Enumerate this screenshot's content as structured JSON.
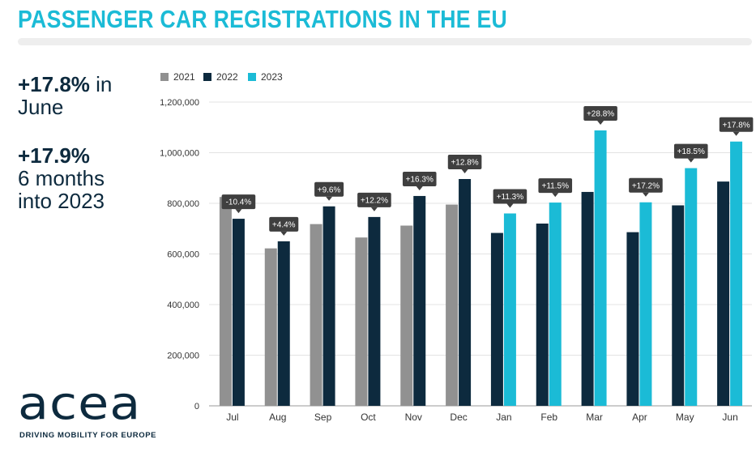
{
  "title": "PASSENGER CAR REGISTRATIONS IN THE EU",
  "stats": [
    {
      "value": "+17.8%",
      "text": " in",
      "text2": "June"
    },
    {
      "value": "+17.9%",
      "text": "",
      "text2": "6 months",
      "text3": "into 2023"
    }
  ],
  "logo": {
    "word": "acea",
    "tagline": "DRIVING MOBILITY FOR EUROPE"
  },
  "colors": {
    "2021": "#919191",
    "2022": "#0d2a3e",
    "2023": "#1bbbd6",
    "label_bg": "#3f3f3f",
    "title": "#1bbbd6"
  },
  "chart_data": {
    "type": "bar",
    "categories": [
      "Jul",
      "Aug",
      "Sep",
      "Oct",
      "Nov",
      "Dec",
      "Jan",
      "Feb",
      "Mar",
      "Apr",
      "May",
      "Jun"
    ],
    "series": [
      {
        "name": "2021",
        "values": [
          825000,
          622000,
          718000,
          665000,
          712000,
          795000,
          null,
          null,
          null,
          null,
          null,
          null
        ]
      },
      {
        "name": "2022",
        "values": [
          739000,
          650000,
          788000,
          746000,
          829000,
          896000,
          683000,
          720000,
          845000,
          686000,
          792000,
          886000
        ]
      },
      {
        "name": "2023",
        "values": [
          null,
          null,
          null,
          null,
          null,
          null,
          760000,
          803000,
          1088000,
          804000,
          939000,
          1044000
        ]
      }
    ],
    "change_labels": [
      "-10.4%",
      "+4.4%",
      "+9.6%",
      "+12.2%",
      "+16.3%",
      "+12.8%",
      "+11.3%",
      "+11.5%",
      "+28.8%",
      "+17.2%",
      "+18.5%",
      "+17.8%"
    ],
    "y_ticks": [
      "0",
      "200,000",
      "400,000",
      "600,000",
      "800,000",
      "1,000,000",
      "1,200,000"
    ],
    "ylim": [
      0,
      1200000
    ],
    "legend": [
      "2021",
      "2022",
      "2023"
    ],
    "legend_position": "top-left",
    "grid": true
  }
}
